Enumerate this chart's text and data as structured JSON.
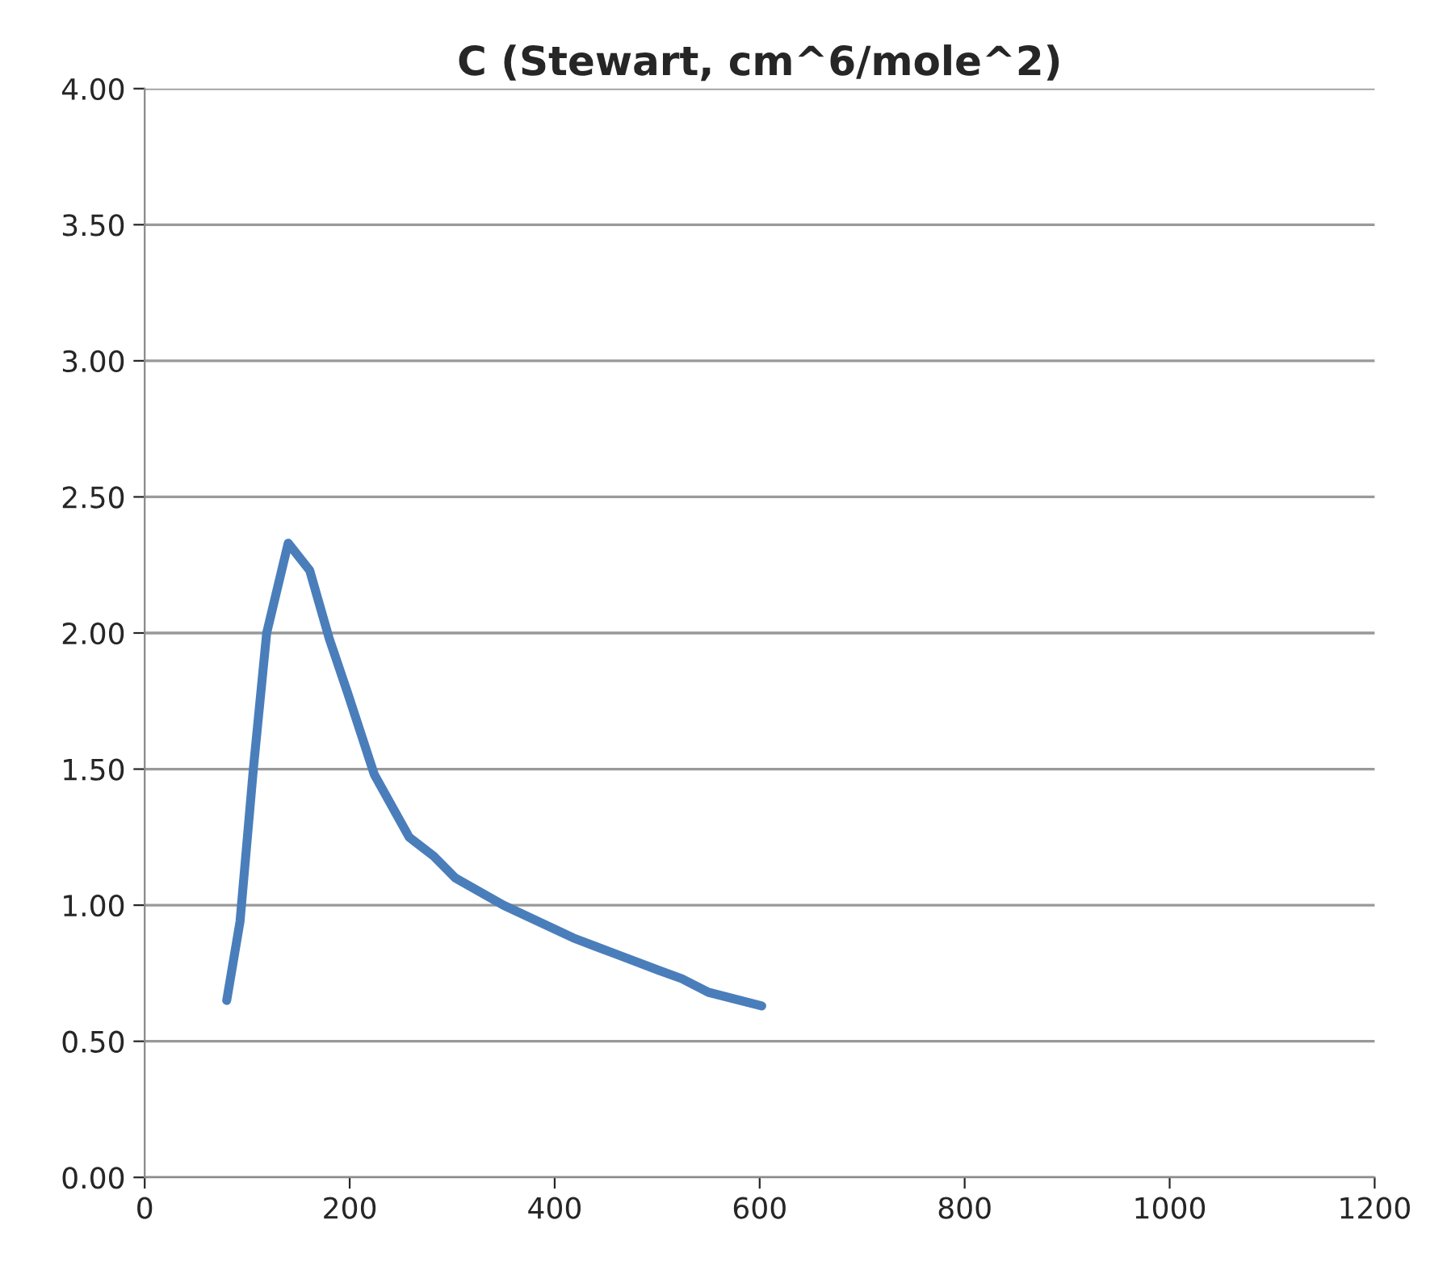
{
  "chart_data": {
    "type": "line",
    "title": "C (Stewart, cm^6/mole^2)",
    "x": [
      80,
      93,
      106,
      119,
      140,
      161,
      180,
      198,
      224,
      258,
      282,
      303,
      350,
      418,
      439,
      502,
      524,
      550,
      602
    ],
    "series": [
      {
        "color": "#4a7ebb",
        "values": [
          0.65,
          0.94,
          1.5,
          2.0,
          2.33,
          2.23,
          1.98,
          1.78,
          1.48,
          1.25,
          1.18,
          1.1,
          1.0,
          0.88,
          0.85,
          0.76,
          0.73,
          0.68,
          0.63
        ]
      }
    ],
    "xlim": [
      0,
      1200
    ],
    "xticks": [
      0,
      200,
      400,
      600,
      800,
      1000,
      1200
    ],
    "ylim": [
      0,
      4
    ],
    "yticks": [
      {
        "value": 0,
        "label": "0.00"
      },
      {
        "value": 0.5,
        "label": "0.50"
      },
      {
        "value": 1,
        "label": "1.00"
      },
      {
        "value": 1.5,
        "label": "1.50"
      },
      {
        "value": 2,
        "label": "2.00"
      },
      {
        "value": 2.5,
        "label": "2.50"
      },
      {
        "value": 3,
        "label": "3.00"
      },
      {
        "value": 3.5,
        "label": "3.50"
      },
      {
        "value": 4,
        "label": "4.00"
      }
    ],
    "grid": "y",
    "line_style": "solid"
  }
}
